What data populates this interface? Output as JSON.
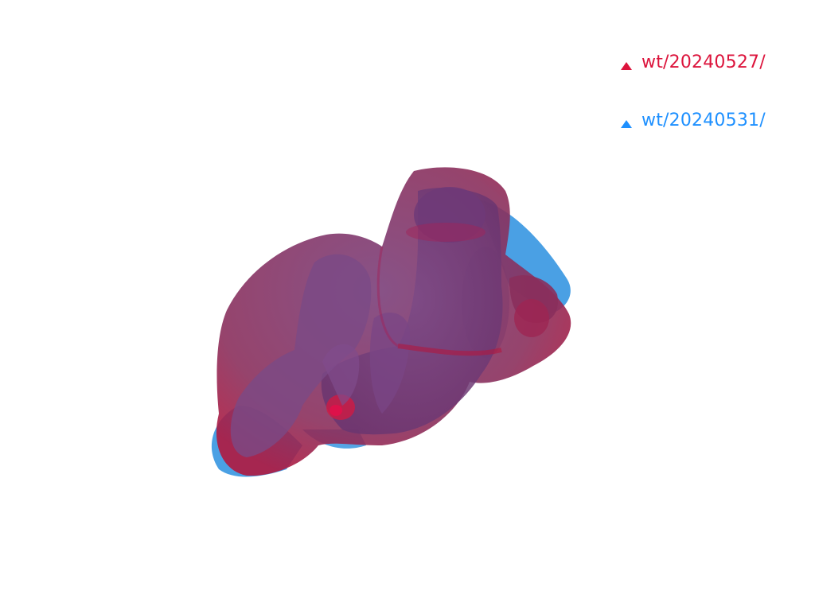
{
  "legend": {
    "items": [
      {
        "label": "wt/20240527/",
        "color": "#dc143c",
        "marker": "triangle-up-icon"
      },
      {
        "label": "wt/20240531/",
        "color": "#1e90ff",
        "marker": "triangle-up-icon"
      }
    ]
  },
  "scene": {
    "background": "#ffffff",
    "surface_colors": {
      "first": "#dc143c",
      "second": "#1e90ff"
    }
  }
}
